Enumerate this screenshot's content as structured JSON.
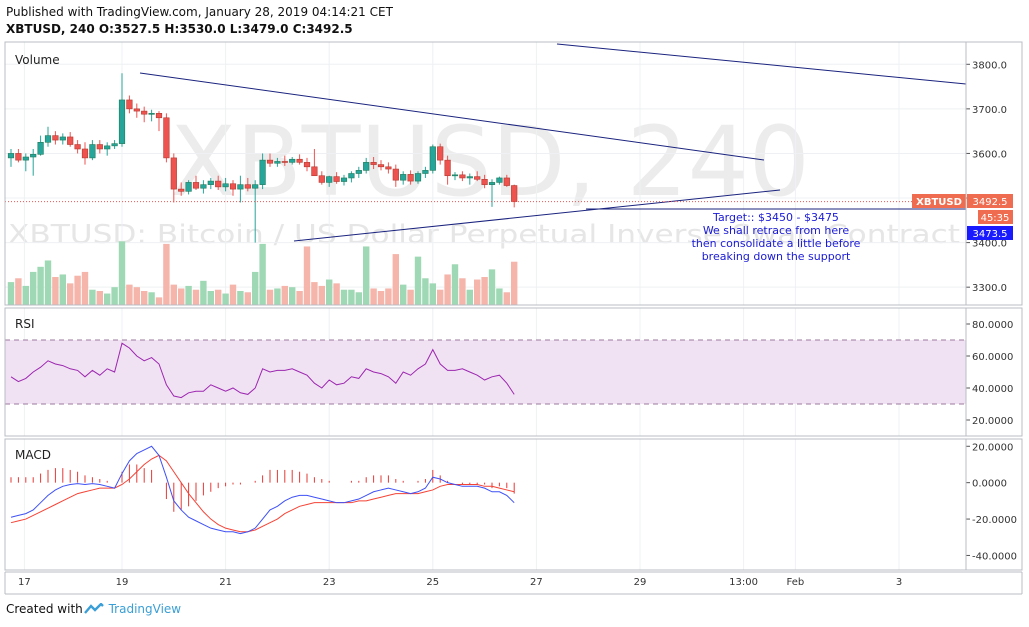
{
  "header": {
    "published": "Published with TradingView.com, January 28, 2019 04:14:21 CET",
    "symbol_line": "XBTUSD, 240",
    "o_label": "O:",
    "o": "3527.5",
    "h_label": "H:",
    "h": "3530.0",
    "l_label": "L:",
    "l": "3479.0",
    "c_label": "C:",
    "c": "3492.5"
  },
  "watermark": {
    "big": "XBTUSD, 240",
    "desc": "XBTUSD: Bitcoin / US Dollar Perpetual Inverse Swap Contract"
  },
  "footer": {
    "created": "Created with",
    "brand": "TradingView"
  },
  "colors": {
    "up": "#26a69a",
    "down": "#ef5350",
    "vol_up": "#9fd8b4",
    "vol_down": "#f5b5ab",
    "rsi_line": "#9c27b0",
    "rsi_band": "#f1e2f3",
    "macd_line": "#3f51f5",
    "signal_line": "#f44336",
    "hist": "#e53935",
    "trend": "#1a237e",
    "price_tag": "#ef6c50",
    "tag2": "#1a1aff",
    "annotation": "#1a1ad6"
  },
  "chart_data": {
    "type": "candlestick",
    "timeframe": "240",
    "x_ticks": [
      "17",
      "19",
      "21",
      "23",
      "25",
      "27",
      "29",
      "13:00",
      "Feb",
      "3"
    ],
    "price_axis": {
      "ticks": [
        3300,
        3400,
        3500,
        3600,
        3700,
        3800
      ],
      "range": [
        3260,
        3850
      ]
    },
    "panels": [
      {
        "name": "Volume",
        "candles": [
          {
            "o": 3590,
            "h": 3610,
            "l": 3570,
            "c": 3600
          },
          {
            "o": 3600,
            "h": 3610,
            "l": 3580,
            "c": 3585
          },
          {
            "o": 3585,
            "h": 3600,
            "l": 3560,
            "c": 3592
          },
          {
            "o": 3592,
            "h": 3610,
            "l": 3550,
            "c": 3598
          },
          {
            "o": 3598,
            "h": 3640,
            "l": 3595,
            "c": 3625
          },
          {
            "o": 3625,
            "h": 3660,
            "l": 3615,
            "c": 3640
          },
          {
            "o": 3640,
            "h": 3650,
            "l": 3620,
            "c": 3630
          },
          {
            "o": 3630,
            "h": 3645,
            "l": 3620,
            "c": 3637
          },
          {
            "o": 3637,
            "h": 3648,
            "l": 3615,
            "c": 3620
          },
          {
            "o": 3620,
            "h": 3630,
            "l": 3600,
            "c": 3610
          },
          {
            "o": 3610,
            "h": 3625,
            "l": 3575,
            "c": 3590
          },
          {
            "o": 3590,
            "h": 3630,
            "l": 3585,
            "c": 3620
          },
          {
            "o": 3620,
            "h": 3630,
            "l": 3600,
            "c": 3610
          },
          {
            "o": 3610,
            "h": 3625,
            "l": 3595,
            "c": 3617
          },
          {
            "o": 3617,
            "h": 3630,
            "l": 3610,
            "c": 3622
          },
          {
            "o": 3622,
            "h": 3780,
            "l": 3615,
            "c": 3720
          },
          {
            "o": 3720,
            "h": 3730,
            "l": 3690,
            "c": 3700
          },
          {
            "o": 3700,
            "h": 3712,
            "l": 3680,
            "c": 3695
          },
          {
            "o": 3695,
            "h": 3705,
            "l": 3670,
            "c": 3688
          },
          {
            "o": 3688,
            "h": 3698,
            "l": 3672,
            "c": 3690
          },
          {
            "o": 3690,
            "h": 3695,
            "l": 3650,
            "c": 3680
          },
          {
            "o": 3680,
            "h": 3690,
            "l": 3580,
            "c": 3590
          },
          {
            "o": 3590,
            "h": 3600,
            "l": 3490,
            "c": 3520
          },
          {
            "o": 3520,
            "h": 3535,
            "l": 3505,
            "c": 3515
          },
          {
            "o": 3515,
            "h": 3540,
            "l": 3508,
            "c": 3535
          },
          {
            "o": 3535,
            "h": 3550,
            "l": 3518,
            "c": 3522
          },
          {
            "o": 3522,
            "h": 3540,
            "l": 3510,
            "c": 3530
          },
          {
            "o": 3530,
            "h": 3545,
            "l": 3520,
            "c": 3538
          },
          {
            "o": 3538,
            "h": 3550,
            "l": 3518,
            "c": 3525
          },
          {
            "o": 3525,
            "h": 3545,
            "l": 3515,
            "c": 3532
          },
          {
            "o": 3532,
            "h": 3540,
            "l": 3505,
            "c": 3520
          },
          {
            "o": 3520,
            "h": 3550,
            "l": 3490,
            "c": 3530
          },
          {
            "o": 3530,
            "h": 3545,
            "l": 3515,
            "c": 3522
          },
          {
            "o": 3522,
            "h": 3540,
            "l": 3400,
            "c": 3530
          },
          {
            "o": 3530,
            "h": 3600,
            "l": 3520,
            "c": 3585
          },
          {
            "o": 3585,
            "h": 3600,
            "l": 3570,
            "c": 3578
          },
          {
            "o": 3578,
            "h": 3590,
            "l": 3570,
            "c": 3582
          },
          {
            "o": 3582,
            "h": 3595,
            "l": 3572,
            "c": 3580
          },
          {
            "o": 3580,
            "h": 3592,
            "l": 3575,
            "c": 3587
          },
          {
            "o": 3587,
            "h": 3598,
            "l": 3575,
            "c": 3580
          },
          {
            "o": 3580,
            "h": 3590,
            "l": 3560,
            "c": 3570
          },
          {
            "o": 3570,
            "h": 3610,
            "l": 3550,
            "c": 3550
          },
          {
            "o": 3550,
            "h": 3560,
            "l": 3530,
            "c": 3535
          },
          {
            "o": 3535,
            "h": 3550,
            "l": 3525,
            "c": 3548
          },
          {
            "o": 3548,
            "h": 3558,
            "l": 3532,
            "c": 3537
          },
          {
            "o": 3537,
            "h": 3552,
            "l": 3528,
            "c": 3545
          },
          {
            "o": 3545,
            "h": 3560,
            "l": 3535,
            "c": 3555
          },
          {
            "o": 3555,
            "h": 3570,
            "l": 3545,
            "c": 3562
          },
          {
            "o": 3562,
            "h": 3590,
            "l": 3555,
            "c": 3580
          },
          {
            "o": 3580,
            "h": 3592,
            "l": 3565,
            "c": 3575
          },
          {
            "o": 3575,
            "h": 3585,
            "l": 3562,
            "c": 3570
          },
          {
            "o": 3570,
            "h": 3580,
            "l": 3555,
            "c": 3565
          },
          {
            "o": 3565,
            "h": 3575,
            "l": 3525,
            "c": 3540
          },
          {
            "o": 3540,
            "h": 3560,
            "l": 3530,
            "c": 3553
          },
          {
            "o": 3553,
            "h": 3562,
            "l": 3530,
            "c": 3538
          },
          {
            "o": 3538,
            "h": 3560,
            "l": 3532,
            "c": 3555
          },
          {
            "o": 3555,
            "h": 3570,
            "l": 3545,
            "c": 3562
          },
          {
            "o": 3562,
            "h": 3620,
            "l": 3555,
            "c": 3615
          },
          {
            "o": 3615,
            "h": 3622,
            "l": 3575,
            "c": 3585
          },
          {
            "o": 3585,
            "h": 3595,
            "l": 3530,
            "c": 3550
          },
          {
            "o": 3550,
            "h": 3558,
            "l": 3540,
            "c": 3552
          },
          {
            "o": 3552,
            "h": 3560,
            "l": 3538,
            "c": 3545
          },
          {
            "o": 3545,
            "h": 3555,
            "l": 3530,
            "c": 3548
          },
          {
            "o": 3548,
            "h": 3560,
            "l": 3538,
            "c": 3542
          },
          {
            "o": 3542,
            "h": 3552,
            "l": 3522,
            "c": 3530
          },
          {
            "o": 3530,
            "h": 3542,
            "l": 3480,
            "c": 3535
          },
          {
            "o": 3535,
            "h": 3548,
            "l": 3530,
            "c": 3545
          },
          {
            "o": 3545,
            "h": 3552,
            "l": 3525,
            "c": 3528
          },
          {
            "o": 3528,
            "h": 3530,
            "l": 3479,
            "c": 3492
          }
        ],
        "volume": [
          18,
          21,
          15,
          26,
          30,
          35,
          22,
          24,
          17,
          23,
          26,
          12,
          11,
          9,
          14,
          50,
          16,
          14,
          11,
          10,
          6,
          48,
          16,
          13,
          15,
          12,
          19,
          11,
          12,
          9,
          16,
          11,
          10,
          26,
          48,
          12,
          13,
          15,
          14,
          11,
          46,
          18,
          15,
          20,
          17,
          12,
          12,
          10,
          46,
          13,
          11,
          13,
          40,
          16,
          12,
          38,
          21,
          17,
          12,
          24,
          32,
          21,
          12,
          20,
          22,
          28,
          13,
          10,
          34
        ],
        "current_price_tag": "3492.5",
        "timer_tag": "45:35",
        "level_tag": "3473.5",
        "annotation": [
          "Target:: $3450 - $3475",
          "We shall retrace from here",
          "then consolidate a little before",
          "breaking down the support"
        ]
      },
      {
        "name": "RSI",
        "ticks": [
          "80.0000",
          "60.0000",
          "40.0000",
          "20.0000"
        ],
        "range": [
          10,
          90
        ],
        "bands": [
          70,
          30
        ],
        "values": [
          47,
          44,
          46,
          50,
          53,
          57,
          55,
          54,
          52,
          51,
          47,
          51,
          48,
          52,
          50,
          68,
          65,
          60,
          57,
          59,
          55,
          42,
          35,
          34,
          37,
          38,
          38,
          42,
          40,
          38,
          40,
          37,
          36,
          40,
          52,
          50,
          51,
          51,
          52,
          50,
          48,
          43,
          40,
          45,
          42,
          43,
          47,
          46,
          52,
          50,
          49,
          47,
          43,
          50,
          48,
          52,
          55,
          64,
          55,
          51,
          51,
          52,
          50,
          48,
          45,
          47,
          48,
          43,
          36
        ]
      },
      {
        "name": "MACD",
        "ticks": [
          "20.0000",
          "0.0000",
          "-20.0000",
          "-40.0000"
        ],
        "range": [
          -48,
          24
        ],
        "macd": [
          -19,
          -18,
          -17,
          -15,
          -11,
          -7,
          -4,
          -2,
          -1,
          -0.5,
          -1,
          -0.5,
          -1,
          -2,
          -3,
          5,
          12,
          16,
          18,
          20,
          15,
          3,
          -10,
          -15,
          -19,
          -21,
          -23,
          -25,
          -26,
          -27,
          -27,
          -28,
          -27,
          -25,
          -20,
          -15,
          -13,
          -10,
          -8,
          -7,
          -7,
          -8,
          -9,
          -10,
          -11,
          -11,
          -10,
          -9,
          -7,
          -5,
          -4,
          -3,
          -4,
          -5,
          -6,
          -5,
          -3,
          3,
          2,
          0,
          -1,
          -2,
          -2,
          -2,
          -3,
          -5,
          -5,
          -7,
          -11
        ],
        "signal": [
          -22,
          -21,
          -20,
          -18,
          -16,
          -14,
          -12,
          -10,
          -8,
          -6,
          -5,
          -4,
          -3,
          -3,
          -3,
          -1,
          2,
          6,
          10,
          13,
          15,
          12,
          6,
          0,
          -6,
          -11,
          -16,
          -20,
          -23,
          -25,
          -26,
          -27,
          -27,
          -26,
          -24,
          -22,
          -20,
          -17,
          -15,
          -13,
          -12,
          -11,
          -11,
          -11,
          -11,
          -11,
          -11,
          -10,
          -10,
          -9,
          -8,
          -7,
          -6,
          -6,
          -6,
          -6,
          -5,
          -4,
          -2,
          -1,
          -1,
          -1,
          -1,
          -1,
          -2,
          -2,
          -3,
          -4,
          -5
        ],
        "histogram": [
          3,
          3,
          3,
          3,
          5,
          7,
          8,
          8,
          7,
          6,
          4,
          3,
          2,
          1,
          0,
          6,
          10,
          10,
          8,
          7,
          0,
          -9,
          -16,
          -15,
          -13,
          -10,
          -7,
          -5,
          -3,
          -2,
          -1,
          -1,
          0,
          1,
          4,
          7,
          7,
          7,
          7,
          6,
          5,
          3,
          2,
          1,
          0,
          0,
          1,
          1,
          3,
          4,
          4,
          4,
          2,
          1,
          0,
          1,
          2,
          7,
          4,
          1,
          0,
          -1,
          -1,
          -1,
          -1,
          -3,
          -2,
          -3,
          -6
        ]
      }
    ]
  }
}
